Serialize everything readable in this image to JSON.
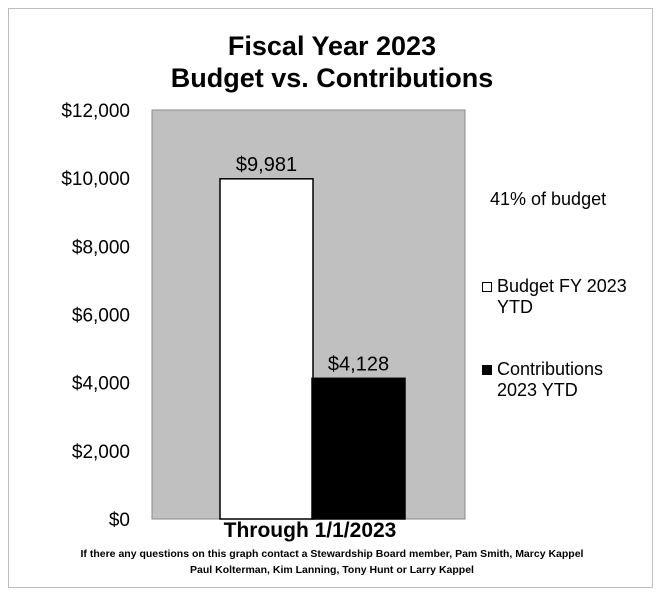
{
  "chart_data": {
    "type": "bar",
    "title": "Fiscal Year 2023",
    "subtitle": "Budget vs. Contributions",
    "xlabel": "Through 1/1/2023",
    "ylabel": "",
    "ylim": [
      0,
      12000
    ],
    "yticks": [
      "$0",
      "$2,000",
      "$4,000",
      "$6,000",
      "$8,000",
      "$10,000",
      "$12,000"
    ],
    "grid": false,
    "plot_background": "#c0c0c0",
    "legend_position": "right",
    "series": [
      {
        "name": "Budget FY 2023 YTD",
        "value": 9981,
        "label": "$9,981",
        "color": "#ffffff"
      },
      {
        "name": "Contributions 2023 YTD",
        "value": 4128,
        "label": "$4,128",
        "color": "#000000"
      }
    ],
    "annotation": "41% of budget"
  },
  "footnote": {
    "line1": "If there any questions on this graph contact a Stewardship Board member, Pam Smith, Marcy Kappel",
    "line2": "Paul Kolterman, Kim Lanning, Tony Hunt  or Larry Kappel"
  }
}
